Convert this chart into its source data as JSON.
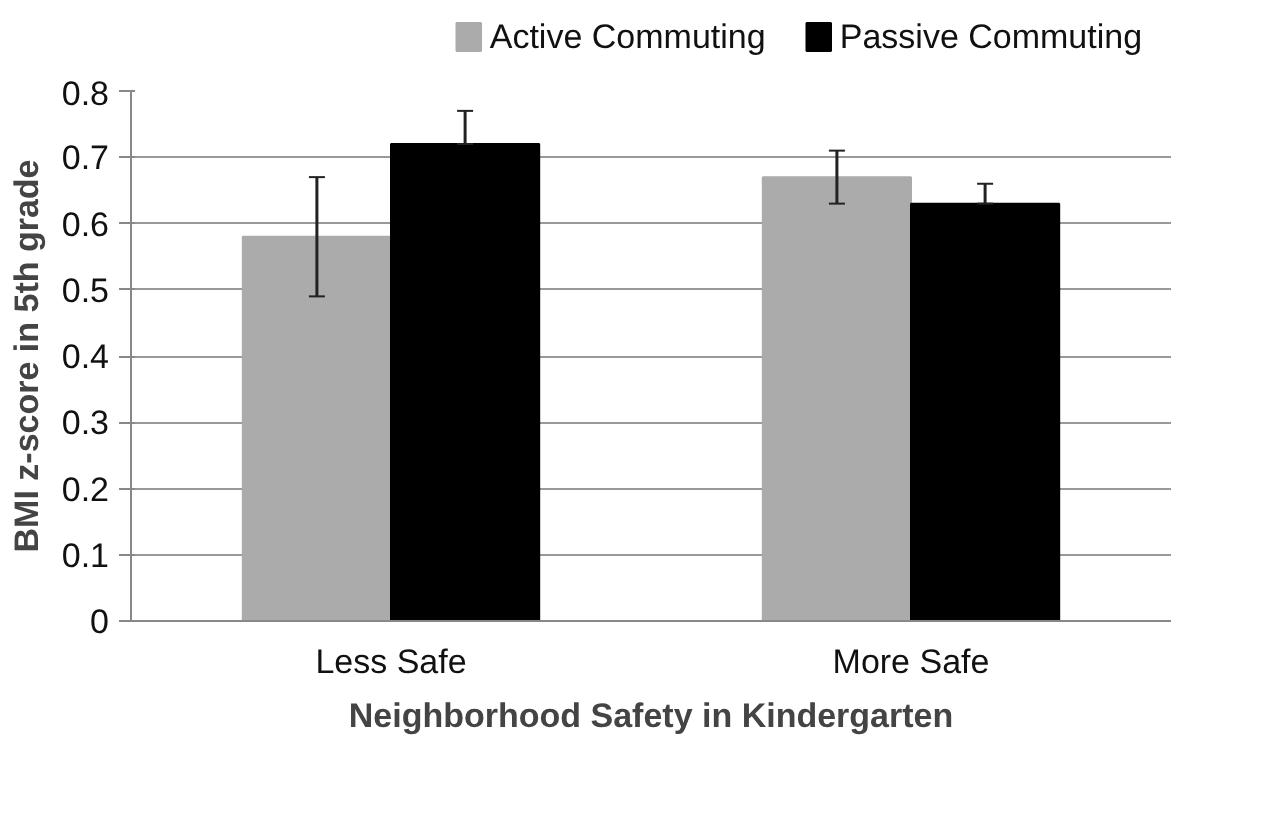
{
  "chart_data": {
    "type": "bar",
    "xlabel": "Neighborhood Safety in Kindergarten",
    "ylabel": "BMI z-score in 5th grade",
    "categories": [
      "Less Safe",
      "More Safe"
    ],
    "series": [
      {
        "name": "Active Commuting",
        "color": "#ababab",
        "values": [
          0.58,
          0.67
        ],
        "errors": [
          [
            0.49,
            0.67
          ],
          [
            0.63,
            0.71
          ]
        ]
      },
      {
        "name": "Passive Commuting",
        "color": "#000000",
        "values": [
          0.72,
          0.63
        ],
        "errors": [
          [
            0.72,
            0.77
          ],
          [
            0.63,
            0.66
          ]
        ]
      }
    ],
    "ylim": [
      0,
      0.8
    ],
    "yticks": [
      0,
      0.1,
      0.2,
      0.3,
      0.4,
      0.5,
      0.6,
      0.7,
      0.8
    ],
    "grid": "y",
    "legend": "top"
  }
}
